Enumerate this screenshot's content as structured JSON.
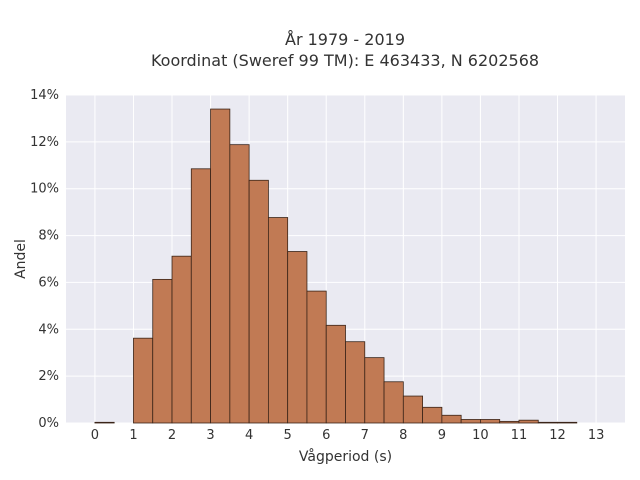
{
  "chart_data": {
    "type": "bar",
    "title": [
      "År 1979 - 2019",
      "Koordinat (Sweref 99 TM): E 463433, N 6202568"
    ],
    "xlabel": "Vågperiod (s)",
    "ylabel": "Andel",
    "xlim": [
      -0.75,
      13.75
    ],
    "ylim": [
      0,
      14
    ],
    "x_ticks": [
      0,
      1,
      2,
      3,
      4,
      5,
      6,
      7,
      8,
      9,
      10,
      11,
      12,
      13
    ],
    "y_ticks": [
      0,
      2,
      4,
      6,
      8,
      10,
      12,
      14
    ],
    "y_tick_labels": [
      "0%",
      "2%",
      "4%",
      "6%",
      "8%",
      "10%",
      "12%",
      "14%"
    ],
    "grid": true,
    "bin_width": 0.5,
    "bins": [
      {
        "start": 0.0,
        "value": 0.03
      },
      {
        "start": 1.0,
        "value": 3.62
      },
      {
        "start": 1.5,
        "value": 6.13
      },
      {
        "start": 2.0,
        "value": 7.12
      },
      {
        "start": 2.5,
        "value": 10.85
      },
      {
        "start": 3.0,
        "value": 13.4
      },
      {
        "start": 3.5,
        "value": 11.88
      },
      {
        "start": 4.0,
        "value": 10.36
      },
      {
        "start": 4.5,
        "value": 8.77
      },
      {
        "start": 5.0,
        "value": 7.32
      },
      {
        "start": 5.5,
        "value": 5.63
      },
      {
        "start": 6.0,
        "value": 4.17
      },
      {
        "start": 6.5,
        "value": 3.47
      },
      {
        "start": 7.0,
        "value": 2.79
      },
      {
        "start": 7.5,
        "value": 1.76
      },
      {
        "start": 8.0,
        "value": 1.15
      },
      {
        "start": 8.5,
        "value": 0.67
      },
      {
        "start": 9.0,
        "value": 0.33
      },
      {
        "start": 9.5,
        "value": 0.15
      },
      {
        "start": 10.0,
        "value": 0.15
      },
      {
        "start": 10.5,
        "value": 0.07
      },
      {
        "start": 11.0,
        "value": 0.12
      },
      {
        "start": 11.5,
        "value": 0.03
      },
      {
        "start": 12.0,
        "value": 0.03
      }
    ],
    "colors": {
      "bar_fill": "#C17A54",
      "bar_edge": "#3A2418",
      "plot_background": "#EAEAF2",
      "grid": "#FFFFFF"
    }
  }
}
